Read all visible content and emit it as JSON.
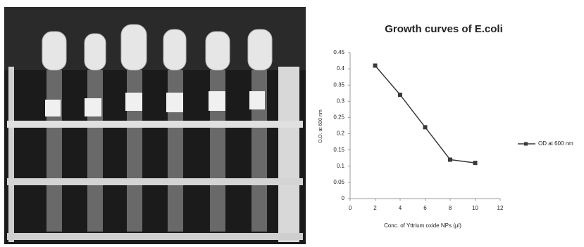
{
  "chart_data": {
    "type": "line",
    "title": "Growth curves of E.coli",
    "x_label": "Conc. of Yttrium oxide NPs (µl)",
    "y_label": "O.D. at 600 nm",
    "x": [
      2,
      4,
      6,
      8,
      10
    ],
    "series": [
      {
        "name": "OD at 600 nm",
        "color": "#3a3a3a",
        "values": [
          0.41,
          0.32,
          0.22,
          0.12,
          0.11
        ]
      }
    ],
    "xlim": [
      0,
      12
    ],
    "xticks": [
      0,
      2,
      4,
      6,
      8,
      10,
      12
    ],
    "ylim": [
      0,
      0.45
    ],
    "yticks": [
      0,
      0.05,
      0.1,
      0.15,
      0.2,
      0.25,
      0.3,
      0.35,
      0.4,
      0.45
    ],
    "grid": false,
    "legend": "right"
  }
}
